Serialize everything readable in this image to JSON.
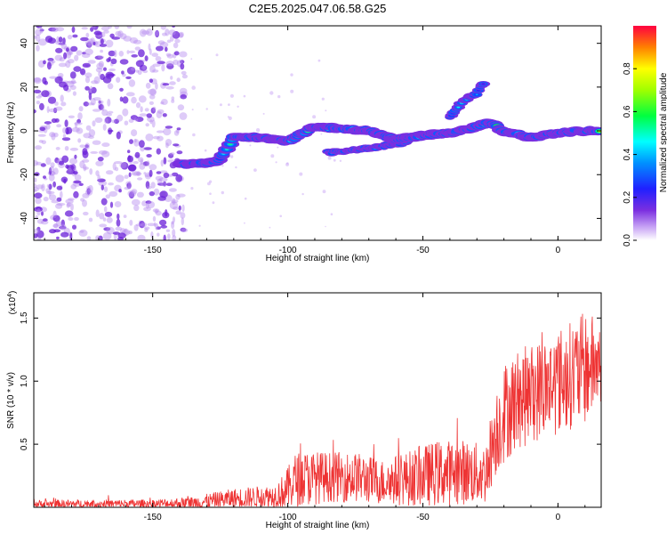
{
  "figure": {
    "title": "C2E5.2025.047.06.58.G25"
  },
  "chart_data": [
    {
      "type": "heatmap",
      "title": "C2E5.2025.047.06.58.G25",
      "xlabel": "Height of straight line (km)",
      "ylabel": "Frequency (Hz)",
      "xlim": [
        -194,
        16
      ],
      "ylim": [
        -50,
        48
      ],
      "xticks": [
        -150,
        -100,
        -50,
        0
      ],
      "xtick_labels": [
        "-150",
        "-100",
        "-50",
        "0"
      ],
      "yticks": [
        -40,
        -20,
        0,
        20,
        40
      ],
      "ytick_labels": [
        "-40",
        "-20",
        "0",
        "20",
        "40"
      ],
      "colorbar": {
        "label": "Normalized spectral amplitude",
        "range": [
          0,
          1
        ],
        "ticks": [
          0.0,
          0.2,
          0.4,
          0.6,
          0.8
        ],
        "tick_labels": [
          "0.0",
          "0.2",
          "0.4",
          "0.6",
          "0.8"
        ],
        "colormap": [
          "#ffffff",
          "#7b2fe0",
          "#0000ff",
          "#00ffff",
          "#00ff00",
          "#ffff00",
          "#ff0000"
        ]
      },
      "noise_region": {
        "x_range": [
          -194,
          -138
        ],
        "y_range": [
          -50,
          48
        ],
        "amplitude": 0.12
      },
      "ridge": [
        [
          -140,
          -15,
          0.95
        ],
        [
          -130,
          -15,
          0.9
        ],
        [
          -125,
          -13,
          0.4
        ],
        [
          -120,
          -3,
          0.7
        ],
        [
          -110,
          -3,
          0.6
        ],
        [
          -100,
          -5,
          0.55
        ],
        [
          -90,
          2,
          0.9
        ],
        [
          -80,
          1,
          0.7
        ],
        [
          -70,
          0,
          0.6
        ],
        [
          -60,
          -4,
          0.75
        ],
        [
          -50,
          -2,
          0.6
        ],
        [
          -40,
          -1,
          0.65
        ],
        [
          -30,
          2,
          0.7
        ],
        [
          -25,
          4,
          0.85
        ],
        [
          -20,
          0,
          0.95
        ],
        [
          -10,
          -3,
          0.9
        ],
        [
          0,
          -1,
          0.8
        ],
        [
          10,
          0,
          0.85
        ],
        [
          16,
          0,
          0.7
        ]
      ],
      "branches": [
        {
          "points": [
            [
              -85,
              -10,
              0.35
            ],
            [
              -70,
              -8,
              0.4
            ],
            [
              -60,
              -6,
              0.45
            ],
            [
              -55,
              -5,
              0.5
            ]
          ]
        },
        {
          "points": [
            [
              -40,
              6,
              0.5
            ],
            [
              -35,
              14,
              0.45
            ],
            [
              -30,
              17,
              0.4
            ],
            [
              -27,
              23,
              0.35
            ]
          ]
        }
      ]
    },
    {
      "type": "line",
      "xlabel": "Height of straight line (km)",
      "ylabel": "SNR (10 * v/v)",
      "y_multiplier": "(x10",
      "y_multiplier_exponent": "4",
      "y_multiplier_close": ")",
      "xlim": [
        -194,
        16
      ],
      "ylim": [
        0,
        17000
      ],
      "xticks": [
        -150,
        -100,
        -50,
        0
      ],
      "xtick_labels": [
        "-150",
        "-100",
        "-50",
        "0"
      ],
      "yticks": [
        5000,
        10000,
        15000
      ],
      "ytick_labels": [
        "0.5",
        "1.0",
        "1.5"
      ],
      "color": "#ee3333",
      "series": [
        {
          "envelope": [
            {
              "x": -194,
              "mean": 250,
              "amp": 350
            },
            {
              "x": -150,
              "mean": 280,
              "amp": 350
            },
            {
              "x": -135,
              "mean": 350,
              "amp": 500
            },
            {
              "x": -120,
              "mean": 700,
              "amp": 800
            },
            {
              "x": -105,
              "mean": 900,
              "amp": 900
            },
            {
              "x": -101,
              "mean": 1300,
              "amp": 1500
            },
            {
              "x": -97,
              "mean": 2200,
              "amp": 2200
            },
            {
              "x": -93,
              "mean": 2300,
              "amp": 2200
            },
            {
              "x": -85,
              "mean": 2400,
              "amp": 2000
            },
            {
              "x": -75,
              "mean": 2400,
              "amp": 2000
            },
            {
              "x": -65,
              "mean": 2000,
              "amp": 1800
            },
            {
              "x": -55,
              "mean": 2300,
              "amp": 2200
            },
            {
              "x": -45,
              "mean": 2700,
              "amp": 2600
            },
            {
              "x": -35,
              "mean": 2800,
              "amp": 2600
            },
            {
              "x": -27,
              "mean": 2600,
              "amp": 2400
            },
            {
              "x": -23,
              "mean": 6000,
              "amp": 3500
            },
            {
              "x": -20,
              "mean": 7500,
              "amp": 4000
            },
            {
              "x": -15,
              "mean": 8500,
              "amp": 4000
            },
            {
              "x": -10,
              "mean": 9000,
              "amp": 4000
            },
            {
              "x": -5,
              "mean": 9500,
              "amp": 4000
            },
            {
              "x": 0,
              "mean": 10000,
              "amp": 4200
            },
            {
              "x": 5,
              "mean": 10500,
              "amp": 4300
            },
            {
              "x": 10,
              "mean": 11000,
              "amp": 4500
            },
            {
              "x": 16,
              "mean": 11500,
              "amp": 3500
            }
          ]
        }
      ]
    }
  ]
}
